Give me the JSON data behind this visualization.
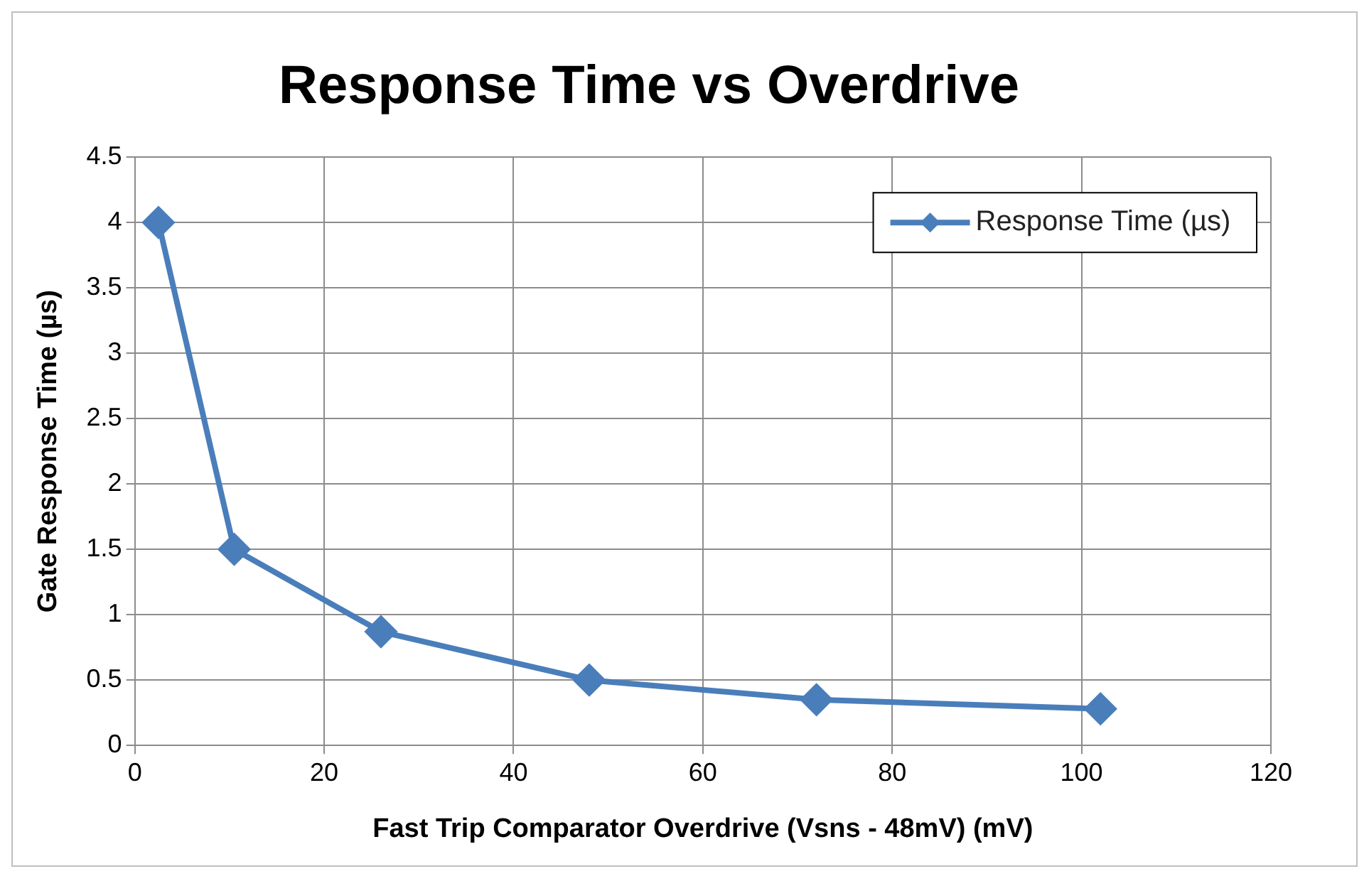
{
  "chart_data": {
    "type": "line",
    "title": "Response Time vs Overdrive",
    "xlabel": "Fast Trip Comparator Overdrive (Vsns - 48mV) (mV)",
    "ylabel": "Gate Response Time (µs)",
    "series": [
      {
        "name": "Response Time (µs)",
        "color": "#4a7ebb",
        "x": [
          2.5,
          10.5,
          26,
          48,
          72,
          102
        ],
        "values": [
          4,
          1.5,
          0.87,
          0.5,
          0.35,
          0.28
        ]
      }
    ],
    "xlim": [
      0,
      120
    ],
    "xticks": [
      0,
      20,
      40,
      60,
      80,
      100,
      120
    ],
    "ylim": [
      0,
      4.5
    ],
    "yticks": [
      0,
      0.5,
      1,
      1.5,
      2,
      2.5,
      3,
      3.5,
      4,
      4.5
    ],
    "grid": true,
    "legend": "top right",
    "marker": "diamond",
    "line_style": "solid"
  }
}
